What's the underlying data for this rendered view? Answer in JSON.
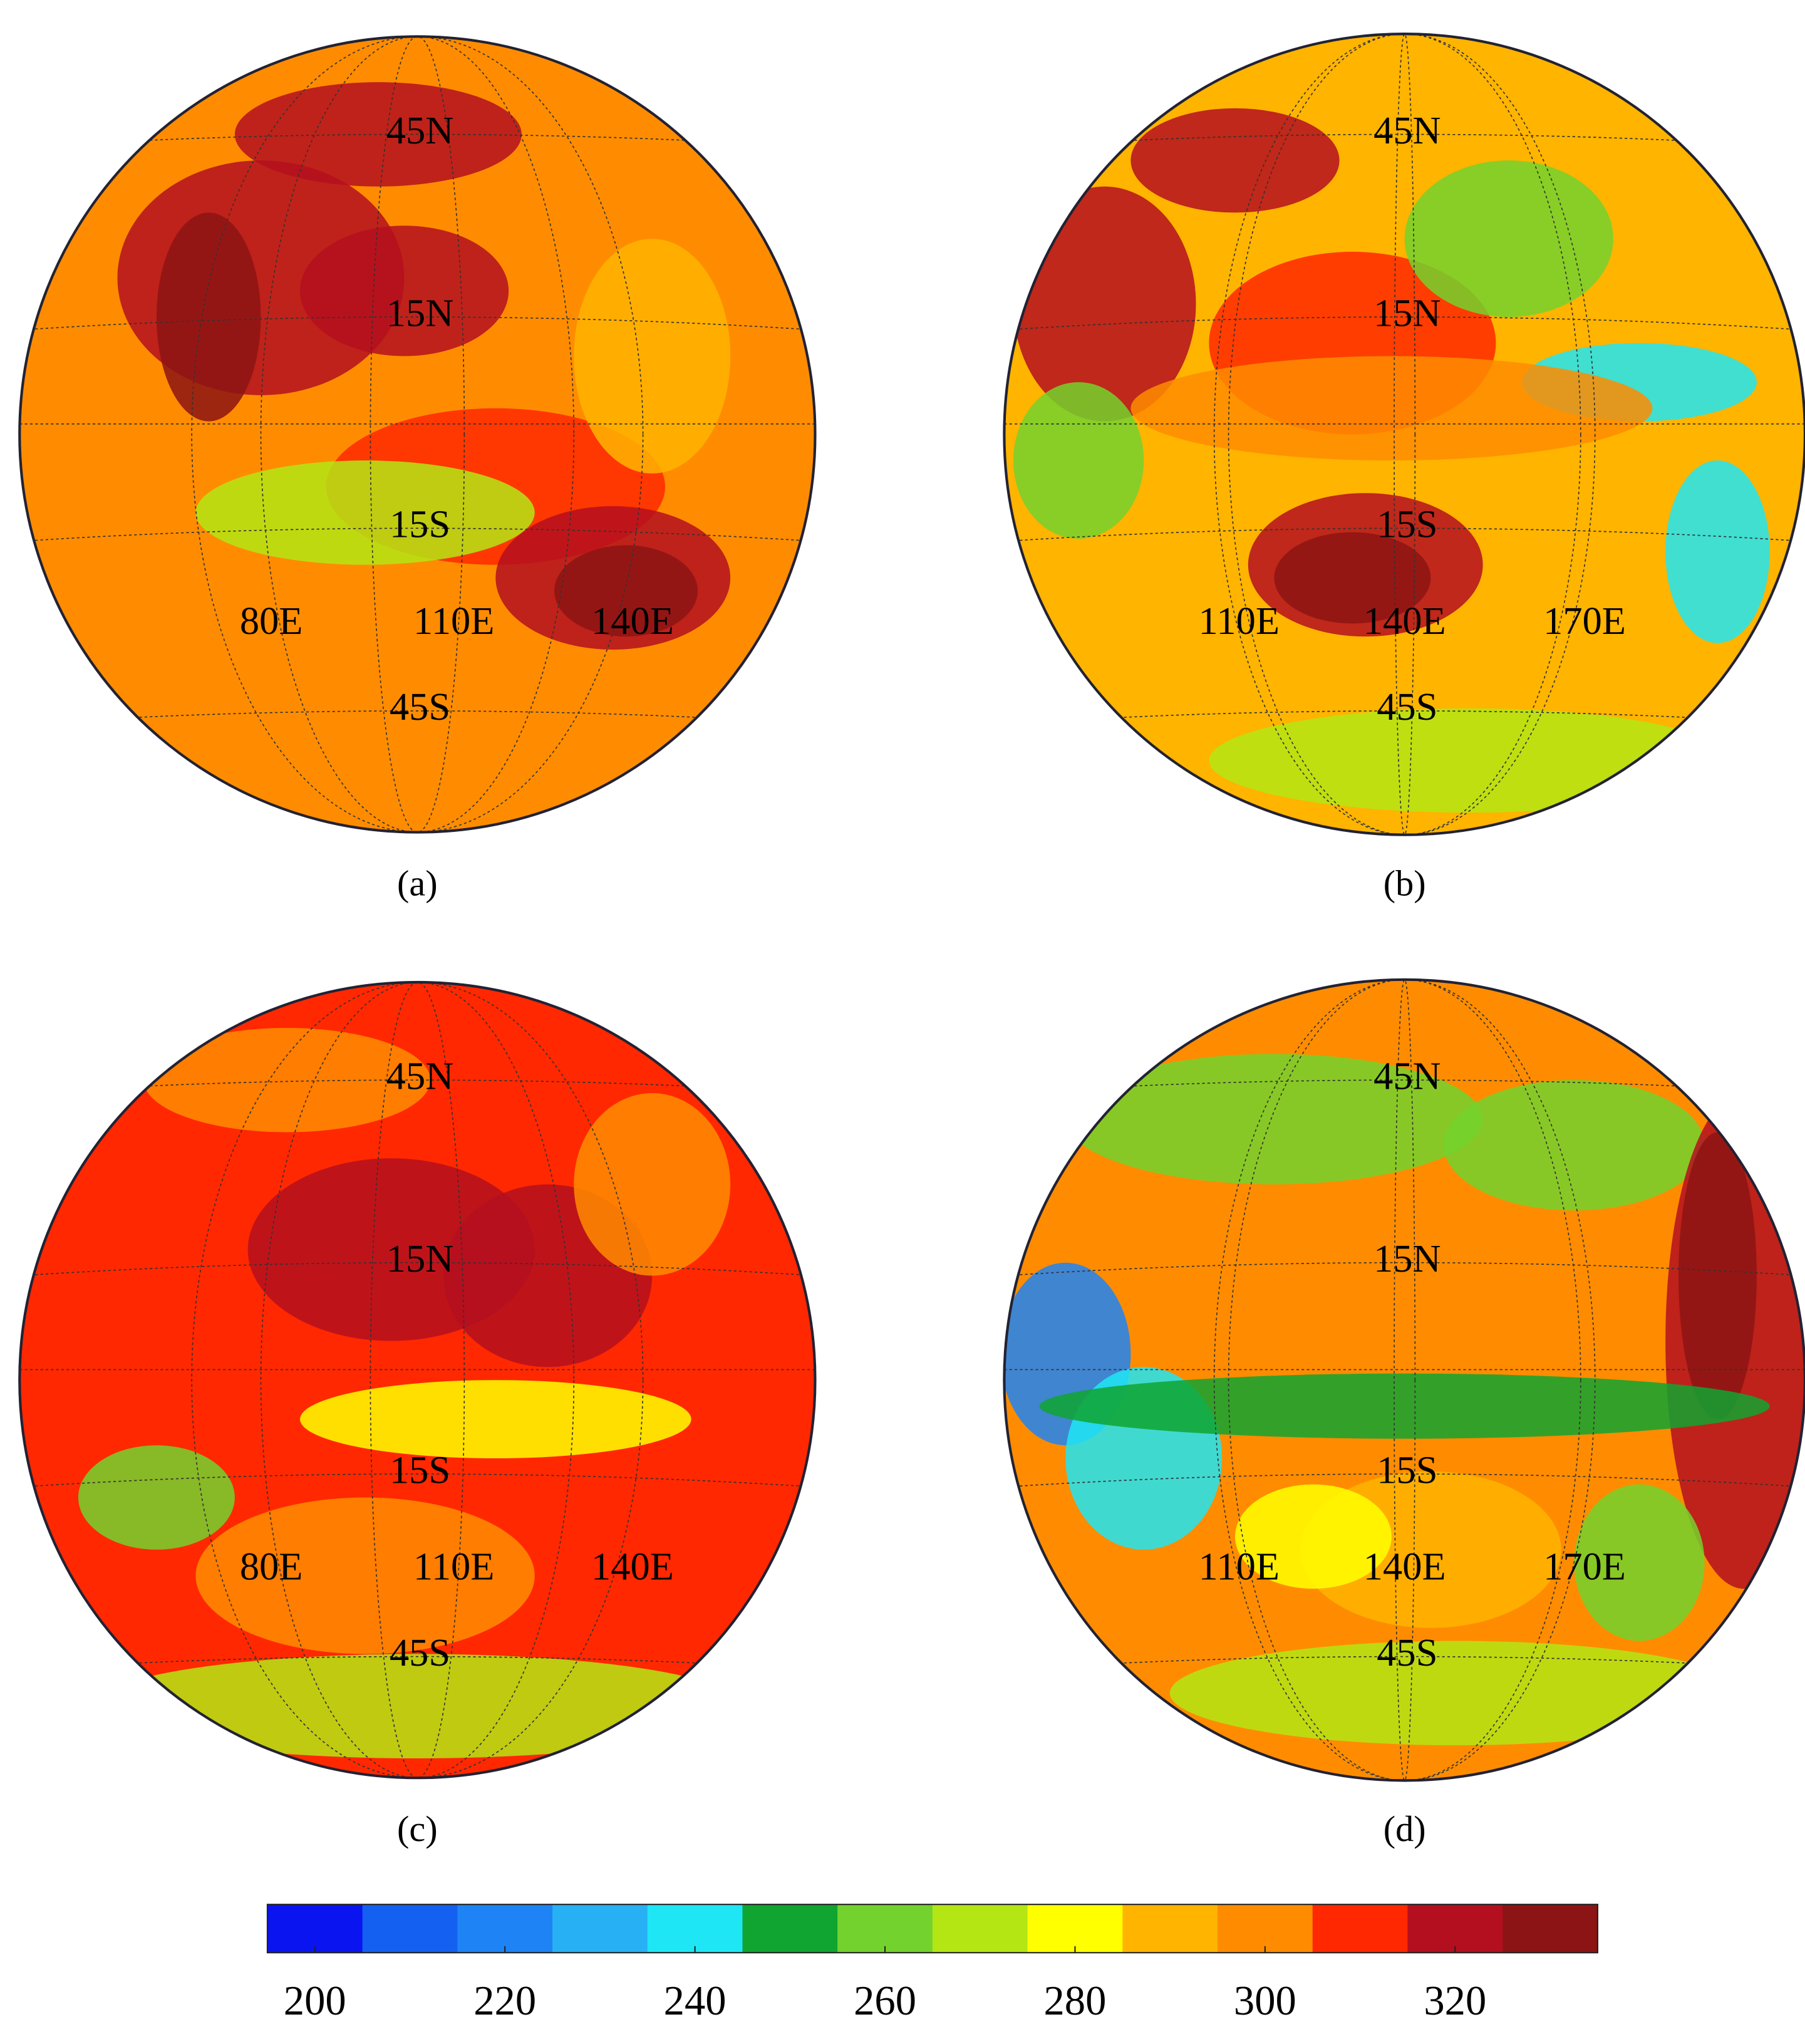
{
  "panels": [
    {
      "label": "(a)",
      "lat_labels": [
        "45N",
        "15N",
        "15S",
        "45S"
      ],
      "lon_labels": [
        "80E",
        "110E",
        "140E"
      ]
    },
    {
      "label": "(b)",
      "lat_labels": [
        "45N",
        "15N",
        "15S",
        "45S"
      ],
      "lon_labels": [
        "110E",
        "140E",
        "170E"
      ]
    },
    {
      "label": "(c)",
      "lat_labels": [
        "45N",
        "15N",
        "15S",
        "45S"
      ],
      "lon_labels": [
        "80E",
        "110E",
        "140E"
      ]
    },
    {
      "label": "(d)",
      "lat_labels": [
        "45N",
        "15N",
        "15S",
        "45S"
      ],
      "lon_labels": [
        "110E",
        "140E",
        "170E"
      ]
    }
  ],
  "colorbar": {
    "lim": [
      195,
      335
    ],
    "ticks": [
      200,
      220,
      240,
      260,
      280,
      300,
      320
    ],
    "colors": [
      "#0a14f0",
      "#1460f0",
      "#1e84f5",
      "#28b0f5",
      "#1ee6f5",
      "#0fa530",
      "#73d22d",
      "#b4e614",
      "#ffff00",
      "#ffb400",
      "#ff8c00",
      "#ff2800",
      "#b40f1e",
      "#8c1414"
    ]
  }
}
